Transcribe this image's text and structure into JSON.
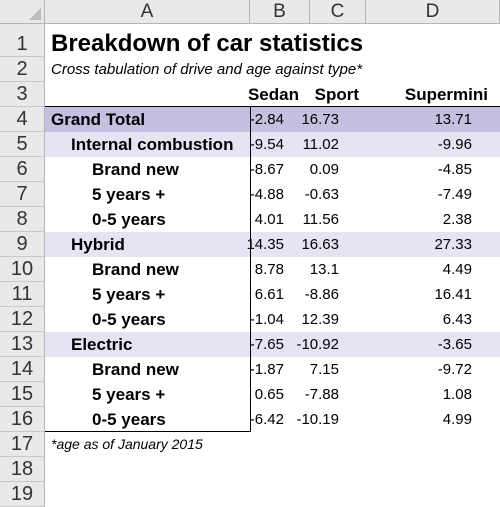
{
  "columns": [
    "A",
    "B",
    "C",
    "D"
  ],
  "row_numbers": [
    "1",
    "2",
    "3",
    "4",
    "5",
    "6",
    "7",
    "8",
    "9",
    "10",
    "11",
    "12",
    "13",
    "14",
    "15",
    "16",
    "17",
    "18",
    "19"
  ],
  "title": "Breakdown of car statistics",
  "subtitle": "Cross tabulation of drive and age against type*",
  "headers": [
    "Sedan",
    "Sport",
    "Supermini"
  ],
  "rows": [
    {
      "label": "Grand Total",
      "values": [
        "-2.84",
        "16.73",
        "13.71"
      ]
    },
    {
      "label": "Internal combustion",
      "values": [
        "-9.54",
        "11.02",
        "-9.96"
      ]
    },
    {
      "label": "Brand new",
      "values": [
        "-8.67",
        "0.09",
        "-4.85"
      ]
    },
    {
      "label": "5 years +",
      "values": [
        "-4.88",
        "-0.63",
        "-7.49"
      ]
    },
    {
      "label": "0-5 years",
      "values": [
        "4.01",
        "11.56",
        "2.38"
      ]
    },
    {
      "label": "Hybrid",
      "values": [
        "14.35",
        "16.63",
        "27.33"
      ]
    },
    {
      "label": "Brand new",
      "values": [
        "8.78",
        "13.1",
        "4.49"
      ]
    },
    {
      "label": "5 years +",
      "values": [
        "6.61",
        "-8.86",
        "16.41"
      ]
    },
    {
      "label": "0-5 years",
      "values": [
        "-1.04",
        "12.39",
        "6.43"
      ]
    },
    {
      "label": "Electric",
      "values": [
        "-7.65",
        "-10.92",
        "-3.65"
      ]
    },
    {
      "label": "Brand new",
      "values": [
        "-1.87",
        "7.15",
        "-9.72"
      ]
    },
    {
      "label": "5 years +",
      "values": [
        "0.65",
        "-7.88",
        "1.08"
      ]
    },
    {
      "label": "0-5 years",
      "values": [
        "-6.42",
        "-10.19",
        "4.99"
      ]
    }
  ],
  "footnote": "*age as of January 2015",
  "colors": {
    "grand_total_band": "#c7bfdf",
    "group_band": "#e6e3f2",
    "header_bg": "#e9e9e9"
  }
}
